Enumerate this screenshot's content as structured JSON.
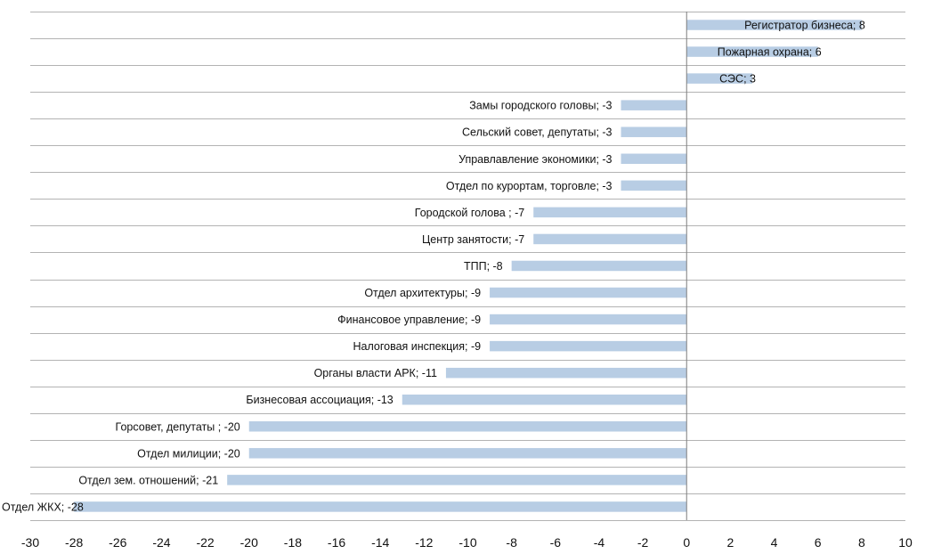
{
  "chart_data": {
    "type": "bar",
    "orientation": "horizontal",
    "title": "",
    "xlabel": "",
    "ylabel": "",
    "xlim": [
      -30,
      10
    ],
    "x_ticks": [
      -30,
      -28,
      -26,
      -24,
      -22,
      -20,
      -18,
      -16,
      -14,
      -12,
      -10,
      -8,
      -6,
      -4,
      -2,
      0,
      2,
      4,
      6,
      8,
      10
    ],
    "grid": true,
    "legend": "none",
    "bar_color": "#b8cde4",
    "grid_color": "#b3b3b3",
    "zero_line_color": "#7f7f7f",
    "categories": [
      "Регистратор бизнеса",
      "Пожарная охрана",
      "СЭС",
      "Замы городского головы",
      "Сельский совет, депутаты",
      "Управлавление экономики",
      "Отдел по курортам, торговле",
      "Городской голова ",
      "Центр занятости",
      "ТПП",
      "Отдел архитектуры",
      "Финансовое управление",
      "Налоговая инспекция",
      "Органы власти АРК",
      "Бизнесовая ассоциация",
      "Горсовет, депутаты ",
      "Отдел милиции",
      "Отдел зем. отношений",
      "Отдел ЖКХ"
    ],
    "values": [
      8,
      6,
      3,
      -3,
      -3,
      -3,
      -3,
      -7,
      -7,
      -8,
      -9,
      -9,
      -9,
      -11,
      -13,
      -20,
      -20,
      -21,
      -28
    ],
    "labels": [
      "Регистратор бизнеса; 8",
      "Пожарная охрана; 6",
      "СЭС; 3",
      "Замы городского головы; -3",
      "Сельский совет, депутаты; -3",
      "Управлавление экономики; -3",
      "Отдел по курортам, торговле; -3",
      "Городской голова ; -7",
      "Центр занятости; -7",
      "ТПП; -8",
      "Отдел архитектуры; -9",
      "Финансовое управление; -9",
      "Налоговая инспекция; -9",
      "Органы власти АРК; -11",
      "Бизнесовая ассоциация; -13",
      "Горсовет, депутаты ; -20",
      "Отдел милиции; -20",
      "Отдел зем. отношений; -21",
      "Отдел ЖКХ; -28"
    ]
  }
}
